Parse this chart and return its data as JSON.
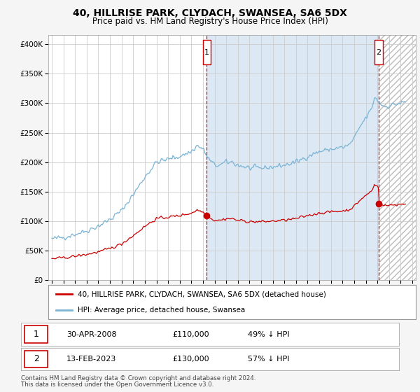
{
  "title": "40, HILLRISE PARK, CLYDACH, SWANSEA, SA6 5DX",
  "subtitle": "Price paid vs. HM Land Registry's House Price Index (HPI)",
  "ylabel_ticks": [
    "£0",
    "£50K",
    "£100K",
    "£150K",
    "£200K",
    "£250K",
    "£300K",
    "£350K",
    "£400K"
  ],
  "ytick_values": [
    0,
    50000,
    100000,
    150000,
    200000,
    250000,
    300000,
    350000,
    400000
  ],
  "ylim": [
    0,
    415000
  ],
  "xlim_start": 1994.7,
  "xlim_end": 2026.3,
  "background_color": "#ffffff",
  "plot_bg_color": "#ffffff",
  "grid_color": "#cccccc",
  "hpi_color": "#7ab3d4",
  "hpi_fill_color": "#dce9f5",
  "price_color": "#cc0000",
  "sale1_x": 2008.33,
  "sale1_y": 110000,
  "sale2_x": 2023.12,
  "sale2_y": 130000,
  "legend_label1": "40, HILLRISE PARK, CLYDACH, SWANSEA, SA6 5DX (detached house)",
  "legend_label2": "HPI: Average price, detached house, Swansea",
  "table_row1": [
    "1",
    "30-APR-2008",
    "£110,000",
    "49% ↓ HPI"
  ],
  "table_row2": [
    "2",
    "13-FEB-2023",
    "£130,000",
    "57% ↓ HPI"
  ],
  "footnote1": "Contains HM Land Registry data © Crown copyright and database right 2024.",
  "footnote2": "This data is licensed under the Open Government Licence v3.0.",
  "fig_bg_color": "#f5f5f5"
}
